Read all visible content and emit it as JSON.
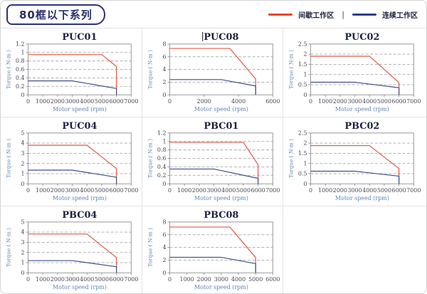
{
  "header": {
    "title": "80框以下系列"
  },
  "legend": {
    "items": [
      {
        "label": "间歇工作区",
        "color": "#e8472c",
        "key": "intermittent"
      },
      {
        "label": "连续工作区",
        "color": "#28408e",
        "key": "continuous"
      }
    ],
    "separator": "|"
  },
  "axes": {
    "xlabel": "Motor speed (rpm)",
    "ylabel": "Torque ( N·m )"
  },
  "colors": {
    "intermittent_line": "#e05a44",
    "continuous_line": "#3d4f8e",
    "legend_red": "#e8472c",
    "legend_blue": "#28408e",
    "axis_label_blue": "#5f86b5",
    "tick_text": "#474552",
    "title_text": "#1b2142",
    "grid_line": "#aaaaaa",
    "frame": "#999999",
    "header_navy": "#2b3283"
  },
  "chart_data": [
    {
      "type": "line",
      "title": "PUC01",
      "cursor_before_title": false,
      "xlabel": "Motor speed (rpm)",
      "ylabel": "Torque ( N·m )",
      "xlim": [
        0,
        7000
      ],
      "ylim": [
        0,
        1.2
      ],
      "xticks": [
        0,
        1000,
        2000,
        3000,
        4000,
        5000,
        6000,
        7000
      ],
      "yticks": [
        0,
        0.2,
        0.4,
        0.6,
        0.8,
        1,
        1.2
      ],
      "series": [
        {
          "name": "间歇工作区",
          "key": "intermittent",
          "points": [
            [
              0,
              0.95
            ],
            [
              5000,
              0.95
            ],
            [
              6000,
              0.67
            ],
            [
              6000,
              0
            ]
          ]
        },
        {
          "name": "连续工作区",
          "key": "continuous",
          "points": [
            [
              0,
              0.33
            ],
            [
              3000,
              0.33
            ],
            [
              6000,
              0.15
            ],
            [
              6000,
              0
            ]
          ]
        }
      ]
    },
    {
      "type": "line",
      "title": "PUC08",
      "cursor_before_title": true,
      "xlabel": "Motor speed (rpm)",
      "ylabel": "Torque ( N·m )",
      "xlim": [
        0,
        6000
      ],
      "ylim": [
        0,
        8
      ],
      "xticks": [
        0,
        2000,
        4000,
        6000
      ],
      "yticks": [
        0,
        2,
        4,
        6,
        8
      ],
      "series": [
        {
          "name": "间歇工作区",
          "key": "intermittent",
          "points": [
            [
              0,
              7.3
            ],
            [
              3500,
              7.3
            ],
            [
              5000,
              2.5
            ],
            [
              5000,
              0
            ]
          ]
        },
        {
          "name": "连续工作区",
          "key": "continuous",
          "points": [
            [
              0,
              2.4
            ],
            [
              3000,
              2.4
            ],
            [
              5000,
              1.4
            ],
            [
              5000,
              0
            ]
          ]
        }
      ]
    },
    {
      "type": "line",
      "title": "PUC02",
      "cursor_before_title": false,
      "xlabel": "Motor speed (rpm)",
      "ylabel": "Torque ( N·m )",
      "xlim": [
        0,
        7000
      ],
      "ylim": [
        0,
        2.5
      ],
      "xticks": [
        0,
        1000,
        2000,
        3000,
        4000,
        5000,
        6000,
        7000
      ],
      "yticks": [
        0,
        0.5,
        1,
        1.5,
        2,
        2.5
      ],
      "series": [
        {
          "name": "间歇工作区",
          "key": "intermittent",
          "points": [
            [
              0,
              1.9
            ],
            [
              4000,
              1.9
            ],
            [
              6000,
              0.6
            ],
            [
              6000,
              0
            ]
          ]
        },
        {
          "name": "连续工作区",
          "key": "continuous",
          "points": [
            [
              0,
              0.62
            ],
            [
              3000,
              0.62
            ],
            [
              6000,
              0.35
            ],
            [
              6000,
              0
            ]
          ]
        }
      ]
    },
    {
      "type": "line",
      "title": "PUC04",
      "cursor_before_title": false,
      "xlabel": "Motor speed (rpm)",
      "ylabel": "Torque ( N·m )",
      "xlim": [
        0,
        7000
      ],
      "ylim": [
        0,
        5
      ],
      "xticks": [
        0,
        1000,
        2000,
        3000,
        4000,
        5000,
        6000,
        7000
      ],
      "yticks": [
        0,
        1,
        2,
        3,
        4,
        5
      ],
      "series": [
        {
          "name": "间歇工作区",
          "key": "intermittent",
          "points": [
            [
              0,
              3.8
            ],
            [
              4000,
              3.8
            ],
            [
              6000,
              1.5
            ],
            [
              6000,
              0
            ]
          ]
        },
        {
          "name": "连续工作区",
          "key": "continuous",
          "points": [
            [
              0,
              1.35
            ],
            [
              3000,
              1.35
            ],
            [
              6000,
              0.65
            ],
            [
              6000,
              0
            ]
          ]
        }
      ]
    },
    {
      "type": "line",
      "title": "PBC01",
      "cursor_before_title": false,
      "xlabel": "Motor speed (rpm)",
      "ylabel": "Torque ( N·m )",
      "xlim": [
        0,
        7000
      ],
      "ylim": [
        0,
        1.2
      ],
      "xticks": [
        0,
        1000,
        2000,
        3000,
        4000,
        5000,
        6000,
        7000
      ],
      "yticks": [
        0,
        0.2,
        0.4,
        0.6,
        0.8,
        1,
        1.2
      ],
      "series": [
        {
          "name": "间歇工作区",
          "key": "intermittent",
          "points": [
            [
              0,
              0.98
            ],
            [
              5000,
              0.98
            ],
            [
              6000,
              0.45
            ],
            [
              6000,
              0
            ]
          ]
        },
        {
          "name": "连续工作区",
          "key": "continuous",
          "points": [
            [
              0,
              0.35
            ],
            [
              3000,
              0.35
            ],
            [
              6000,
              0.13
            ],
            [
              6000,
              0
            ]
          ]
        }
      ]
    },
    {
      "type": "line",
      "title": "PBC02",
      "cursor_before_title": false,
      "xlabel": "Motor speed (rpm)",
      "ylabel": "Torque ( N·m )",
      "xlim": [
        0,
        7000
      ],
      "ylim": [
        0,
        2.5
      ],
      "xticks": [
        0,
        1000,
        2000,
        3000,
        4000,
        5000,
        6000,
        7000
      ],
      "yticks": [
        0,
        0.5,
        1,
        1.5,
        2,
        2.5
      ],
      "series": [
        {
          "name": "间歇工作区",
          "key": "intermittent",
          "points": [
            [
              0,
              1.88
            ],
            [
              4000,
              1.88
            ],
            [
              6000,
              0.75
            ],
            [
              6000,
              0
            ]
          ]
        },
        {
          "name": "连续工作区",
          "key": "continuous",
          "points": [
            [
              0,
              0.62
            ],
            [
              3000,
              0.62
            ],
            [
              6000,
              0.38
            ],
            [
              6000,
              0
            ]
          ]
        }
      ]
    },
    {
      "type": "line",
      "title": "PBC04",
      "cursor_before_title": false,
      "xlabel": "Motor speed (rpm)",
      "ylabel": "Torque ( N·m )",
      "xlim": [
        0,
        7000
      ],
      "ylim": [
        0,
        5
      ],
      "xticks": [
        0,
        1000,
        2000,
        3000,
        4000,
        5000,
        6000,
        7000
      ],
      "yticks": [
        0,
        1,
        2,
        3,
        4,
        5
      ],
      "series": [
        {
          "name": "间歇工作区",
          "key": "intermittent",
          "points": [
            [
              0,
              3.82
            ],
            [
              4000,
              3.82
            ],
            [
              6000,
              1.5
            ],
            [
              6000,
              0
            ]
          ]
        },
        {
          "name": "连续工作区",
          "key": "continuous",
          "points": [
            [
              0,
              1.2
            ],
            [
              3000,
              1.2
            ],
            [
              6000,
              0.6
            ],
            [
              6000,
              0
            ]
          ]
        }
      ]
    },
    {
      "type": "line",
      "title": "PBC08",
      "cursor_before_title": false,
      "xlabel": "Motor speed (rpm)",
      "ylabel": "Torque ( N·m )",
      "xlim": [
        0,
        6000
      ],
      "ylim": [
        0,
        8
      ],
      "xticks": [
        0,
        1000,
        2000,
        3000,
        4000,
        5000,
        6000
      ],
      "yticks": [
        0,
        2,
        4,
        6,
        8
      ],
      "series": [
        {
          "name": "间歇工作区",
          "key": "intermittent",
          "points": [
            [
              0,
              7.2
            ],
            [
              3500,
              7.2
            ],
            [
              5000,
              2.4
            ],
            [
              5000,
              0
            ]
          ]
        },
        {
          "name": "连续工作区",
          "key": "continuous",
          "points": [
            [
              0,
              2.45
            ],
            [
              3000,
              2.45
            ],
            [
              5000,
              1.45
            ],
            [
              5000,
              0
            ]
          ]
        }
      ]
    }
  ]
}
